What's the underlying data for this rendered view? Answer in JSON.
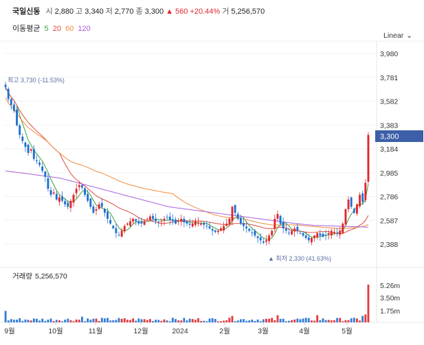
{
  "stock": {
    "name": "국일신동",
    "open_label": "시",
    "open": "2,880",
    "high_label": "고",
    "high": "3,340",
    "low_label": "저",
    "low": "2,770",
    "close_label": "종",
    "close": "3,300",
    "change": "▲ 560 +20.44%",
    "volume_label": "거",
    "volume": "5,256,570"
  },
  "ma_legend": {
    "label": "이동평균",
    "ma5": "5",
    "ma20": "20",
    "ma60": "60",
    "ma120": "120"
  },
  "scale_toggle": {
    "label": "Linear",
    "icon": "chevron-down-icon"
  },
  "colors": {
    "up": "#e0262b",
    "down": "#1f6fd1",
    "ma5": "#38a03a",
    "ma20": "#e04a3a",
    "ma60": "#f08a3a",
    "ma120": "#a65ee0",
    "current_price_box": "#3c5fa8"
  },
  "chart_data": [
    {
      "type": "candlestick",
      "y_ticks": [
        "3,980",
        "3,781",
        "3,582",
        "3,383",
        "3,184",
        "2,985",
        "2,786",
        "2,587",
        "2,388"
      ],
      "ylim": [
        2300,
        4050
      ],
      "x_ticks": [
        "9월",
        "10월",
        "11월",
        "12월",
        "2024",
        "2월",
        "3월",
        "4월",
        "5월"
      ],
      "current_price": "3,300",
      "max_annotation": "최고 3,730 (-11.53%)",
      "min_annotation": "▲ 최저 2,330 (41.63%)",
      "close_series_approx": [
        3700,
        3600,
        3550,
        3500,
        3380,
        3300,
        3250,
        3200,
        3150,
        3180,
        3100,
        3080,
        3050,
        3000,
        2950,
        2850,
        2800,
        2820,
        2760,
        2780,
        2750,
        2720,
        2700,
        2750,
        2800,
        2850,
        2880,
        2860,
        2800,
        2750,
        2700,
        2650,
        2680,
        2720,
        2700,
        2650,
        2600,
        2560,
        2520,
        2480,
        2460,
        2500,
        2540,
        2560,
        2580,
        2600,
        2580,
        2560,
        2560,
        2580,
        2600,
        2620,
        2600,
        2580,
        2570,
        2580,
        2600,
        2610,
        2590,
        2580,
        2560,
        2580,
        2600,
        2570,
        2560,
        2550,
        2560,
        2580,
        2570,
        2560,
        2550,
        2540,
        2520,
        2500,
        2490,
        2500,
        2520,
        2540,
        2560,
        2600,
        2700,
        2650,
        2600,
        2560,
        2540,
        2520,
        2500,
        2480,
        2460,
        2440,
        2420,
        2400,
        2420,
        2460,
        2500,
        2600,
        2640,
        2560,
        2520,
        2500,
        2480,
        2500,
        2520,
        2500,
        2480,
        2460,
        2440,
        2420,
        2440,
        2460,
        2480,
        2460,
        2450,
        2460,
        2480,
        2500,
        2490,
        2480,
        2500,
        2560,
        2680,
        2760,
        2700,
        2650,
        2720,
        2800,
        2740,
        2900,
        3300
      ],
      "ma120_approx": [
        3000,
        2980,
        2960,
        2940,
        2900,
        2860,
        2820,
        2780,
        2740,
        2700,
        2680,
        2660,
        2640,
        2620,
        2600,
        2580,
        2560,
        2545,
        2540,
        2535,
        2530
      ],
      "volume_panel": {
        "label": "거래량",
        "value": "5,256,570",
        "y_ticks": [
          "5.26m",
          "3.50m",
          "1.75m"
        ]
      }
    }
  ]
}
